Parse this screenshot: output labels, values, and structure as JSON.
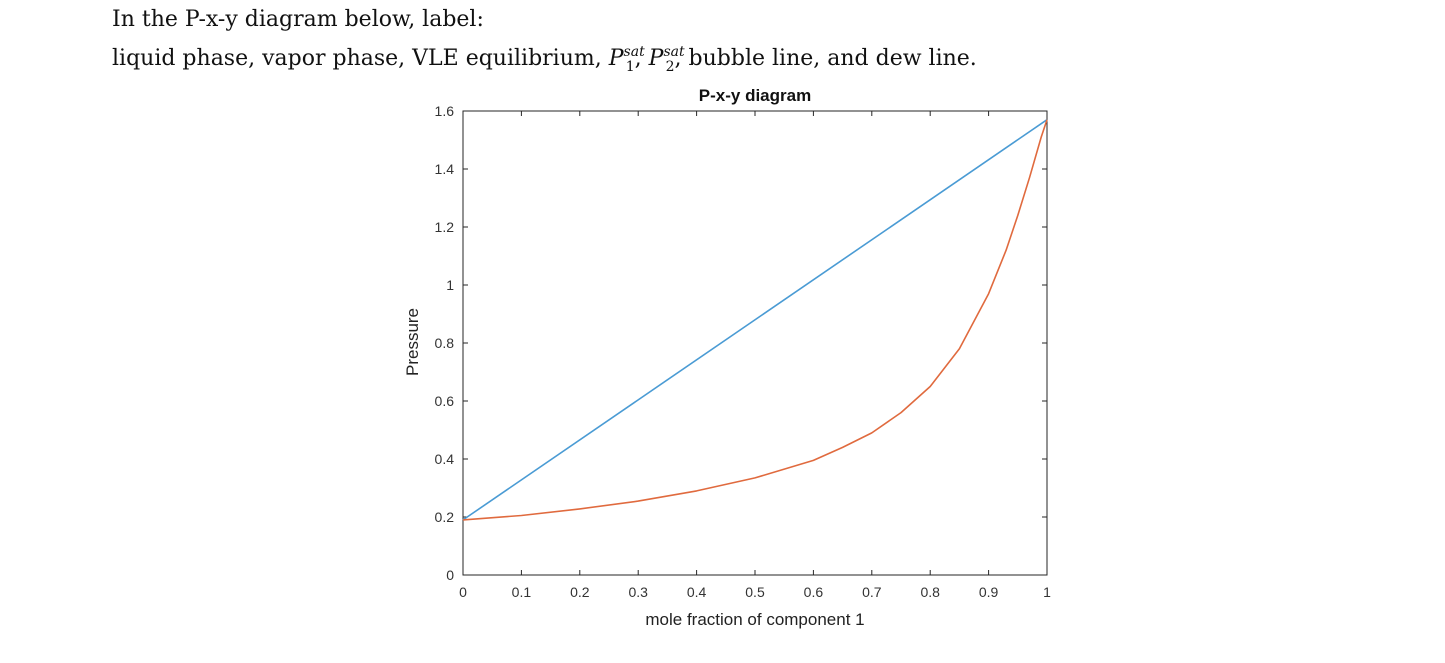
{
  "prompt": {
    "line1": "In the P-x-y diagram below, label:",
    "line2_prefix": "liquid phase, vapor phase, VLE equilibrium, ",
    "p_symbol": "P",
    "sat": "sat",
    "sub1": "1",
    "sub2": "2",
    "sep": ", ",
    "line2_suffix": ", bubble line, and dew line."
  },
  "chart_data": {
    "type": "line",
    "title": "P-x-y diagram",
    "xlabel": "mole fraction of component 1",
    "ylabel": "Pressure",
    "xlim": [
      0,
      1
    ],
    "ylim": [
      0,
      1.6
    ],
    "xticks": [
      "0",
      "0.1",
      "0.2",
      "0.3",
      "0.4",
      "0.5",
      "0.6",
      "0.7",
      "0.8",
      "0.9",
      "1"
    ],
    "yticks": [
      "0",
      "0.2",
      "0.4",
      "0.6",
      "0.8",
      "1",
      "1.2",
      "1.4",
      "1.6"
    ],
    "grid": false,
    "series": [
      {
        "color": "#4a9bd4",
        "x": [
          0,
          1
        ],
        "y": [
          0.19,
          1.57
        ]
      },
      {
        "color": "#e06a3e",
        "x": [
          0,
          0.1,
          0.2,
          0.3,
          0.4,
          0.5,
          0.6,
          0.65,
          0.7,
          0.75,
          0.8,
          0.85,
          0.9,
          0.93,
          0.95,
          0.97,
          0.99,
          1
        ],
        "y": [
          0.19,
          0.205,
          0.228,
          0.255,
          0.29,
          0.335,
          0.395,
          0.44,
          0.49,
          0.56,
          0.65,
          0.78,
          0.97,
          1.12,
          1.24,
          1.37,
          1.51,
          1.57
        ]
      }
    ]
  }
}
